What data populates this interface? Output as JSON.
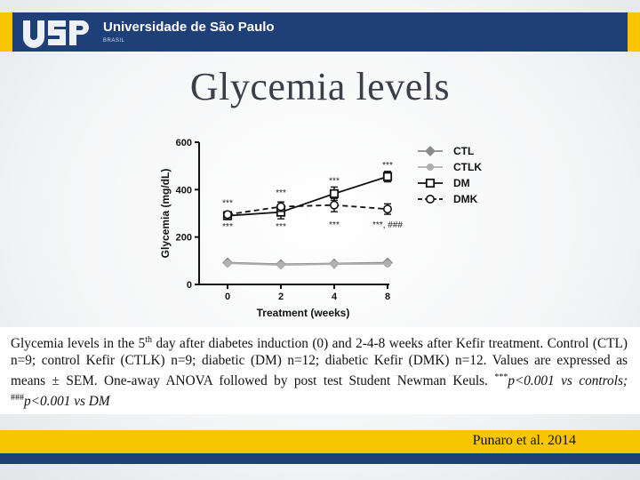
{
  "header": {
    "logo_text": "USP",
    "university_name": "Universidade de São Paulo",
    "university_sub": "BRASIL"
  },
  "slide": {
    "title": "Glycemia levels",
    "citation": "Punaro et al. 2014"
  },
  "caption": {
    "part1": "Glycemia levels in the 5",
    "sup1": "th",
    "part2": " day after diabetes induction (0) and 2-4-8 weeks after Kefir treatment. Control (CTL) n=9; control Kefir (CTLK) n=9; diabetic (DM) n=12; diabetic Kefir (DMK) n=12. Values are expressed as means ± SEM. One-away ANOVA followed by post test Student Newman Keuls. ",
    "sup2": "***",
    "part3": "p<0.001 vs controls; ",
    "sup3": "###",
    "part4": "p<0.001 vs DM"
  },
  "colors": {
    "brand_blue": "#1f3f79",
    "brand_yellow": "#f7c600"
  },
  "chart_data": {
    "type": "line",
    "x": [
      0,
      2,
      4,
      8
    ],
    "x_tick_labels": [
      "0",
      "2",
      "4",
      "8"
    ],
    "xlabel": "Treatment (weeks)",
    "ylabel": "Glycemia (mg/dL)",
    "ylim": [
      0,
      600
    ],
    "y_ticks": [
      0,
      200,
      400,
      600
    ],
    "legend_position": "right",
    "series": [
      {
        "name": "CTL",
        "values": [
          92,
          85,
          88,
          92
        ],
        "err": [
          6,
          5,
          5,
          6
        ],
        "marker": "diamond",
        "color": "#8a8a8a",
        "dash": false
      },
      {
        "name": "CTLK",
        "values": [
          89,
          82,
          86,
          87
        ],
        "err": [
          5,
          5,
          5,
          5
        ],
        "marker": "circle",
        "color": "#b0b0b0",
        "dash": false
      },
      {
        "name": "DM",
        "values": [
          290,
          305,
          383,
          455
        ],
        "err": [
          12,
          28,
          28,
          22
        ],
        "marker": "square",
        "color": "#111111",
        "dash": false
      },
      {
        "name": "DMK",
        "values": [
          295,
          328,
          335,
          318
        ],
        "err": [
          12,
          20,
          28,
          22
        ],
        "marker": "circle-open",
        "color": "#111111",
        "dash": true
      }
    ],
    "annotations": [
      {
        "text": "***",
        "x": 0,
        "y": 332
      },
      {
        "text": "***",
        "x": 0,
        "y": 232
      },
      {
        "text": "***",
        "x": 2,
        "y": 375
      },
      {
        "text": "***",
        "x": 2,
        "y": 232
      },
      {
        "text": "***",
        "x": 4,
        "y": 425
      },
      {
        "text": "***",
        "x": 4,
        "y": 240
      },
      {
        "text": "***",
        "x": 8,
        "y": 492
      },
      {
        "text": "***, ###",
        "x": 8,
        "y": 240
      }
    ]
  }
}
